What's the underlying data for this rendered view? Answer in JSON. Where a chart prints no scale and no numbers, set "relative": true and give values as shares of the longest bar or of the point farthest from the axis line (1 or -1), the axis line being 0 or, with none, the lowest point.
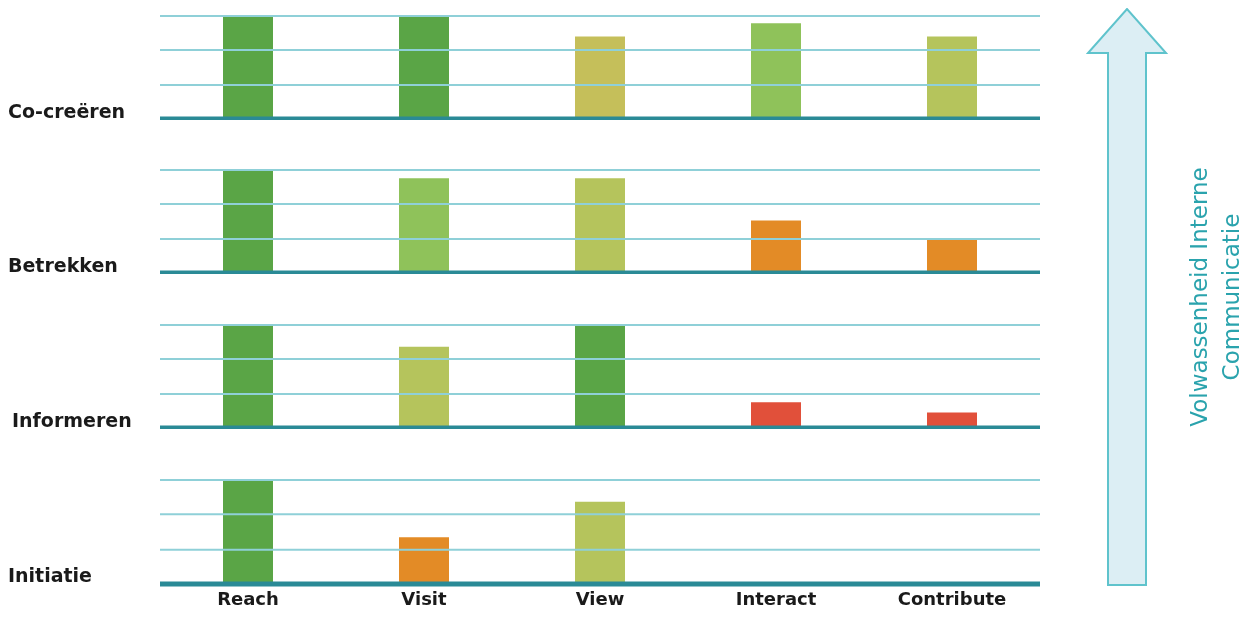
{
  "chart_data": [
    {
      "type": "bar",
      "title": "Co-creëren",
      "categories": [
        null,
        null,
        null,
        null,
        null
      ],
      "values": [
        1,
        1,
        0.8,
        0.93,
        0.8
      ],
      "colors": [
        "#5aa546",
        "#5aa546",
        "#c5bf5a",
        "#8fc25a",
        "#b5c45c"
      ],
      "relative": true,
      "tick_labels": false,
      "legend": false,
      "ref_lines": [
        {
          "axis": "y",
          "value": 0.33,
          "color": "#8fd0d8"
        },
        {
          "axis": "y",
          "value": 0.67,
          "color": "#8fd0d8"
        },
        {
          "axis": "y",
          "value": 1,
          "color": "#8fd0d8"
        }
      ],
      "annotations": [
        "Volwassenheid Interne Communicatie"
      ]
    },
    {
      "type": "bar",
      "title": "Betrekken",
      "categories": [
        null,
        null,
        null,
        null,
        null
      ],
      "values": [
        1,
        0.92,
        0.92,
        0.51,
        0.33
      ],
      "colors": [
        "#5aa546",
        "#8fc25a",
        "#b5c45c",
        "#e38b26",
        "#e38b26"
      ],
      "relative": true,
      "tick_labels": false,
      "legend": false,
      "ref_lines": [
        {
          "axis": "y",
          "value": 0.33,
          "color": "#8fd0d8"
        },
        {
          "axis": "y",
          "value": 0.67,
          "color": "#8fd0d8"
        },
        {
          "axis": "y",
          "value": 1,
          "color": "#8fd0d8"
        }
      ]
    },
    {
      "type": "bar",
      "title": "Informeren",
      "categories": [
        null,
        null,
        null,
        null,
        null
      ],
      "values": [
        1,
        0.79,
        1,
        0.25,
        0.15
      ],
      "colors": [
        "#5aa546",
        "#b5c45c",
        "#5aa546",
        "#e1503a",
        "#e1503a"
      ],
      "relative": true,
      "tick_labels": false,
      "legend": false,
      "ref_lines": [
        {
          "axis": "y",
          "value": 0.33,
          "color": "#8fd0d8"
        },
        {
          "axis": "y",
          "value": 0.67,
          "color": "#8fd0d8"
        },
        {
          "axis": "y",
          "value": 1,
          "color": "#8fd0d8"
        }
      ]
    },
    {
      "type": "bar",
      "title": "Initiatie",
      "categories": [
        "Reach",
        "Visit",
        "View",
        "Interact",
        "Contribute"
      ],
      "values": [
        1,
        0.45,
        0.79,
        null,
        null
      ],
      "colors": [
        "#5aa546",
        "#e38b26",
        "#b5c45c",
        null,
        null
      ],
      "relative": true,
      "tick_labels": "x",
      "legend": false,
      "ref_lines": [
        {
          "axis": "y",
          "value": 0.33,
          "color": "#8fd0d8"
        },
        {
          "axis": "y",
          "value": 0.67,
          "color": "#8fd0d8"
        },
        {
          "axis": "y",
          "value": 1,
          "color": "#8fd0d8"
        }
      ]
    }
  ]
}
